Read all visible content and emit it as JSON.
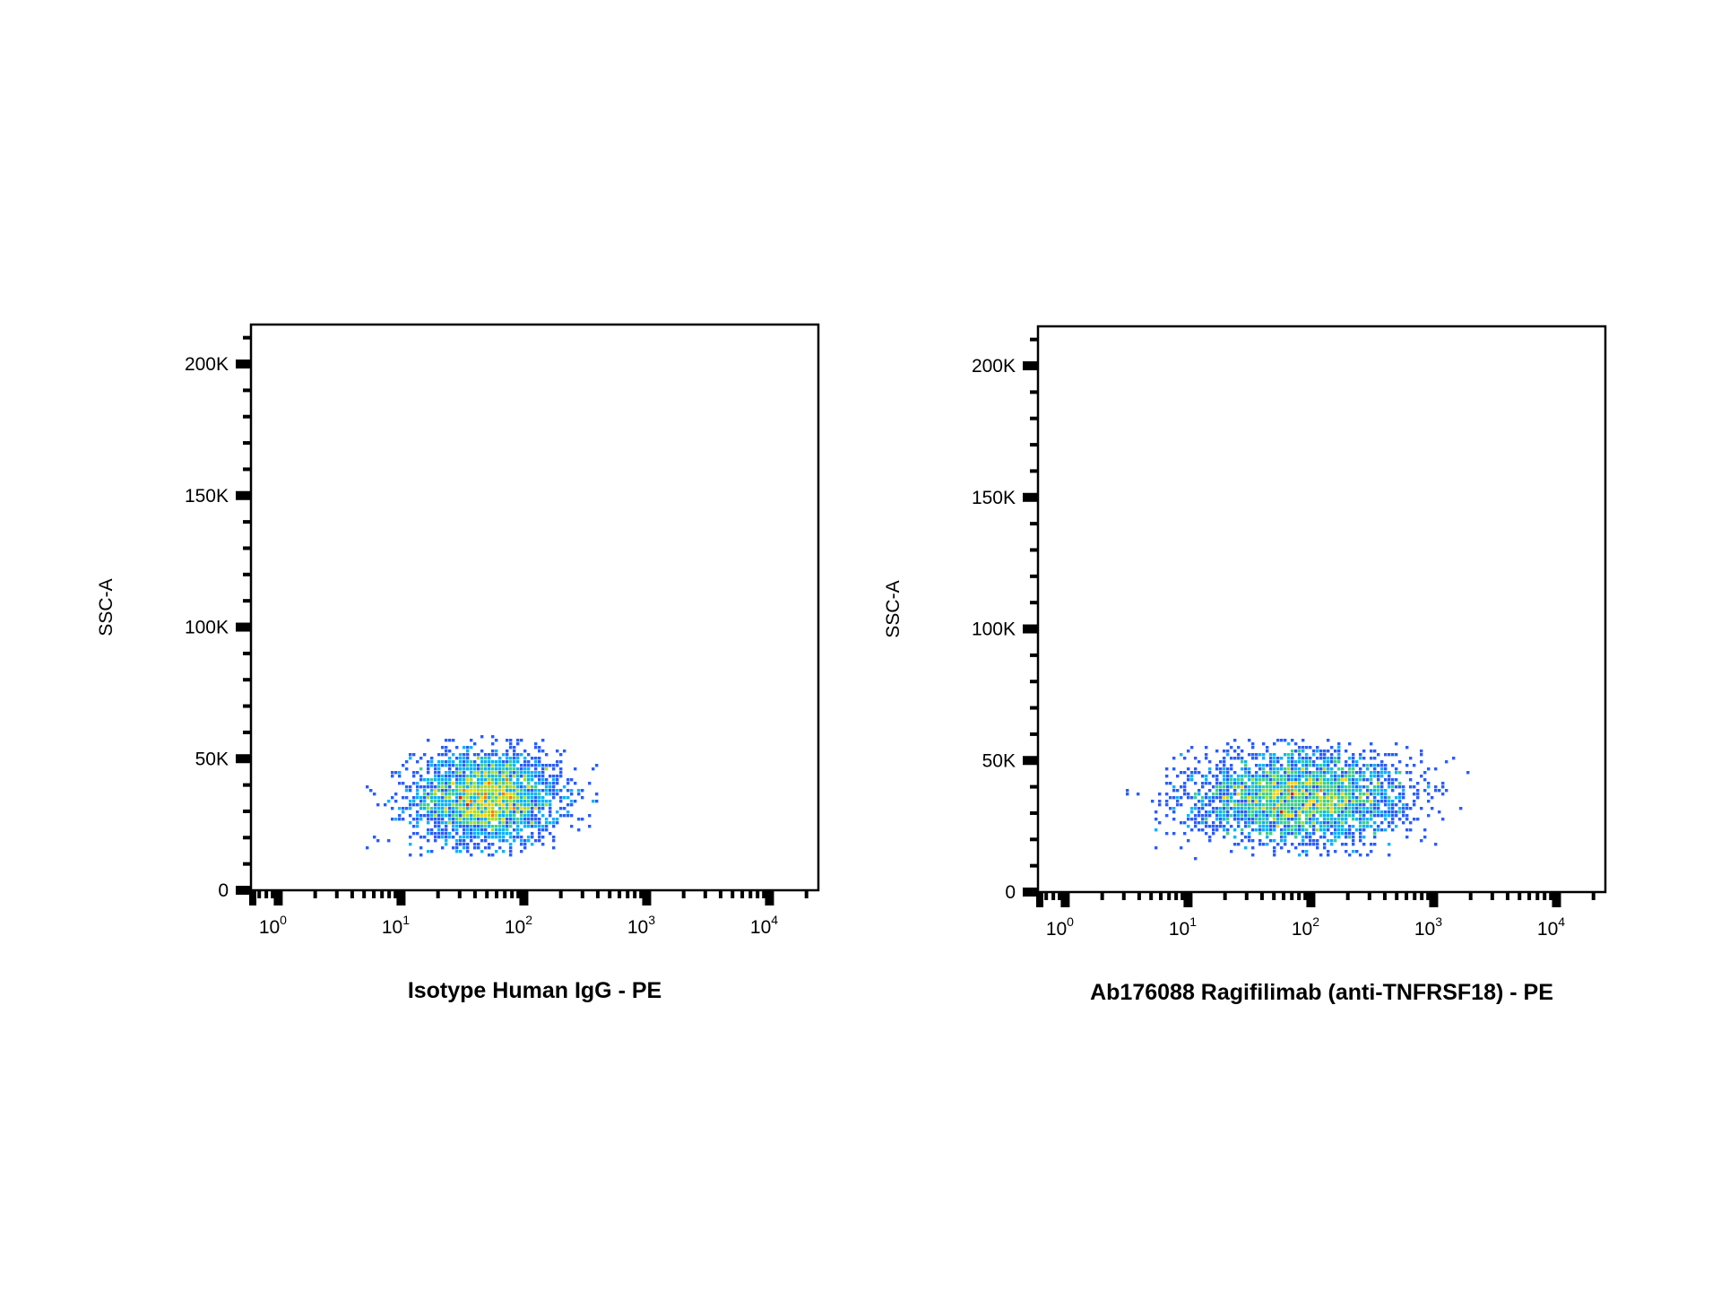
{
  "chart_data": [
    {
      "type": "scatter",
      "subtype": "flow-cytometry-density-dot-plot",
      "xlabel": "Isotype Human IgG - PE",
      "ylabel": "SSC-A",
      "x_scale": "log",
      "xlim": [
        0.6,
        25000
      ],
      "ylim": [
        0,
        215000
      ],
      "x_ticks": [
        {
          "base": "10",
          "exp": "0",
          "value": 1
        },
        {
          "base": "10",
          "exp": "1",
          "value": 10
        },
        {
          "base": "10",
          "exp": "2",
          "value": 100
        },
        {
          "base": "10",
          "exp": "3",
          "value": 1000
        },
        {
          "base": "10",
          "exp": "4",
          "value": 10000
        }
      ],
      "y_ticks": [
        {
          "label": "0",
          "value": 0
        },
        {
          "label": "50K",
          "value": 50000
        },
        {
          "label": "100K",
          "value": 100000
        },
        {
          "label": "150K",
          "value": 150000
        },
        {
          "label": "200K",
          "value": 200000
        }
      ],
      "population": {
        "n_events": 2600,
        "center_x": 50,
        "center_y": 35000,
        "x_spread_log10": 0.3,
        "y_spread": 9000,
        "x_range": [
          3.5,
          450
        ],
        "y_range": [
          13000,
          58000
        ]
      },
      "density_colors": [
        "#1414c8",
        "#2a5cff",
        "#00b4ff",
        "#3cd08c",
        "#a8dc28",
        "#ffd200",
        "#ff7a00",
        "#e61e00"
      ],
      "grid": false,
      "legend": "none"
    },
    {
      "type": "scatter",
      "subtype": "flow-cytometry-density-dot-plot",
      "xlabel": "Ab176088 Ragifilimab (anti-TNFRSF18) - PE",
      "ylabel": "SSC-A",
      "x_scale": "log",
      "xlim": [
        0.6,
        25000
      ],
      "ylim": [
        0,
        215000
      ],
      "x_ticks": [
        {
          "base": "10",
          "exp": "0",
          "value": 1
        },
        {
          "base": "10",
          "exp": "1",
          "value": 10
        },
        {
          "base": "10",
          "exp": "2",
          "value": 100
        },
        {
          "base": "10",
          "exp": "3",
          "value": 1000
        },
        {
          "base": "10",
          "exp": "4",
          "value": 10000
        }
      ],
      "y_ticks": [
        {
          "label": "0",
          "value": 0
        },
        {
          "label": "50K",
          "value": 50000
        },
        {
          "label": "100K",
          "value": 100000
        },
        {
          "label": "150K",
          "value": 150000
        },
        {
          "label": "200K",
          "value": 200000
        }
      ],
      "population": {
        "n_events": 2800,
        "center_x": 80,
        "center_y": 36000,
        "x_spread_log10": 0.45,
        "y_spread": 9000,
        "x_range": [
          2.5,
          3500
        ],
        "y_range": [
          13000,
          58000
        ]
      },
      "density_colors": [
        "#1414c8",
        "#2a5cff",
        "#00b4ff",
        "#3cd08c",
        "#a8dc28",
        "#ffd200",
        "#ff7a00",
        "#e61e00"
      ],
      "grid": false,
      "legend": "none"
    }
  ]
}
